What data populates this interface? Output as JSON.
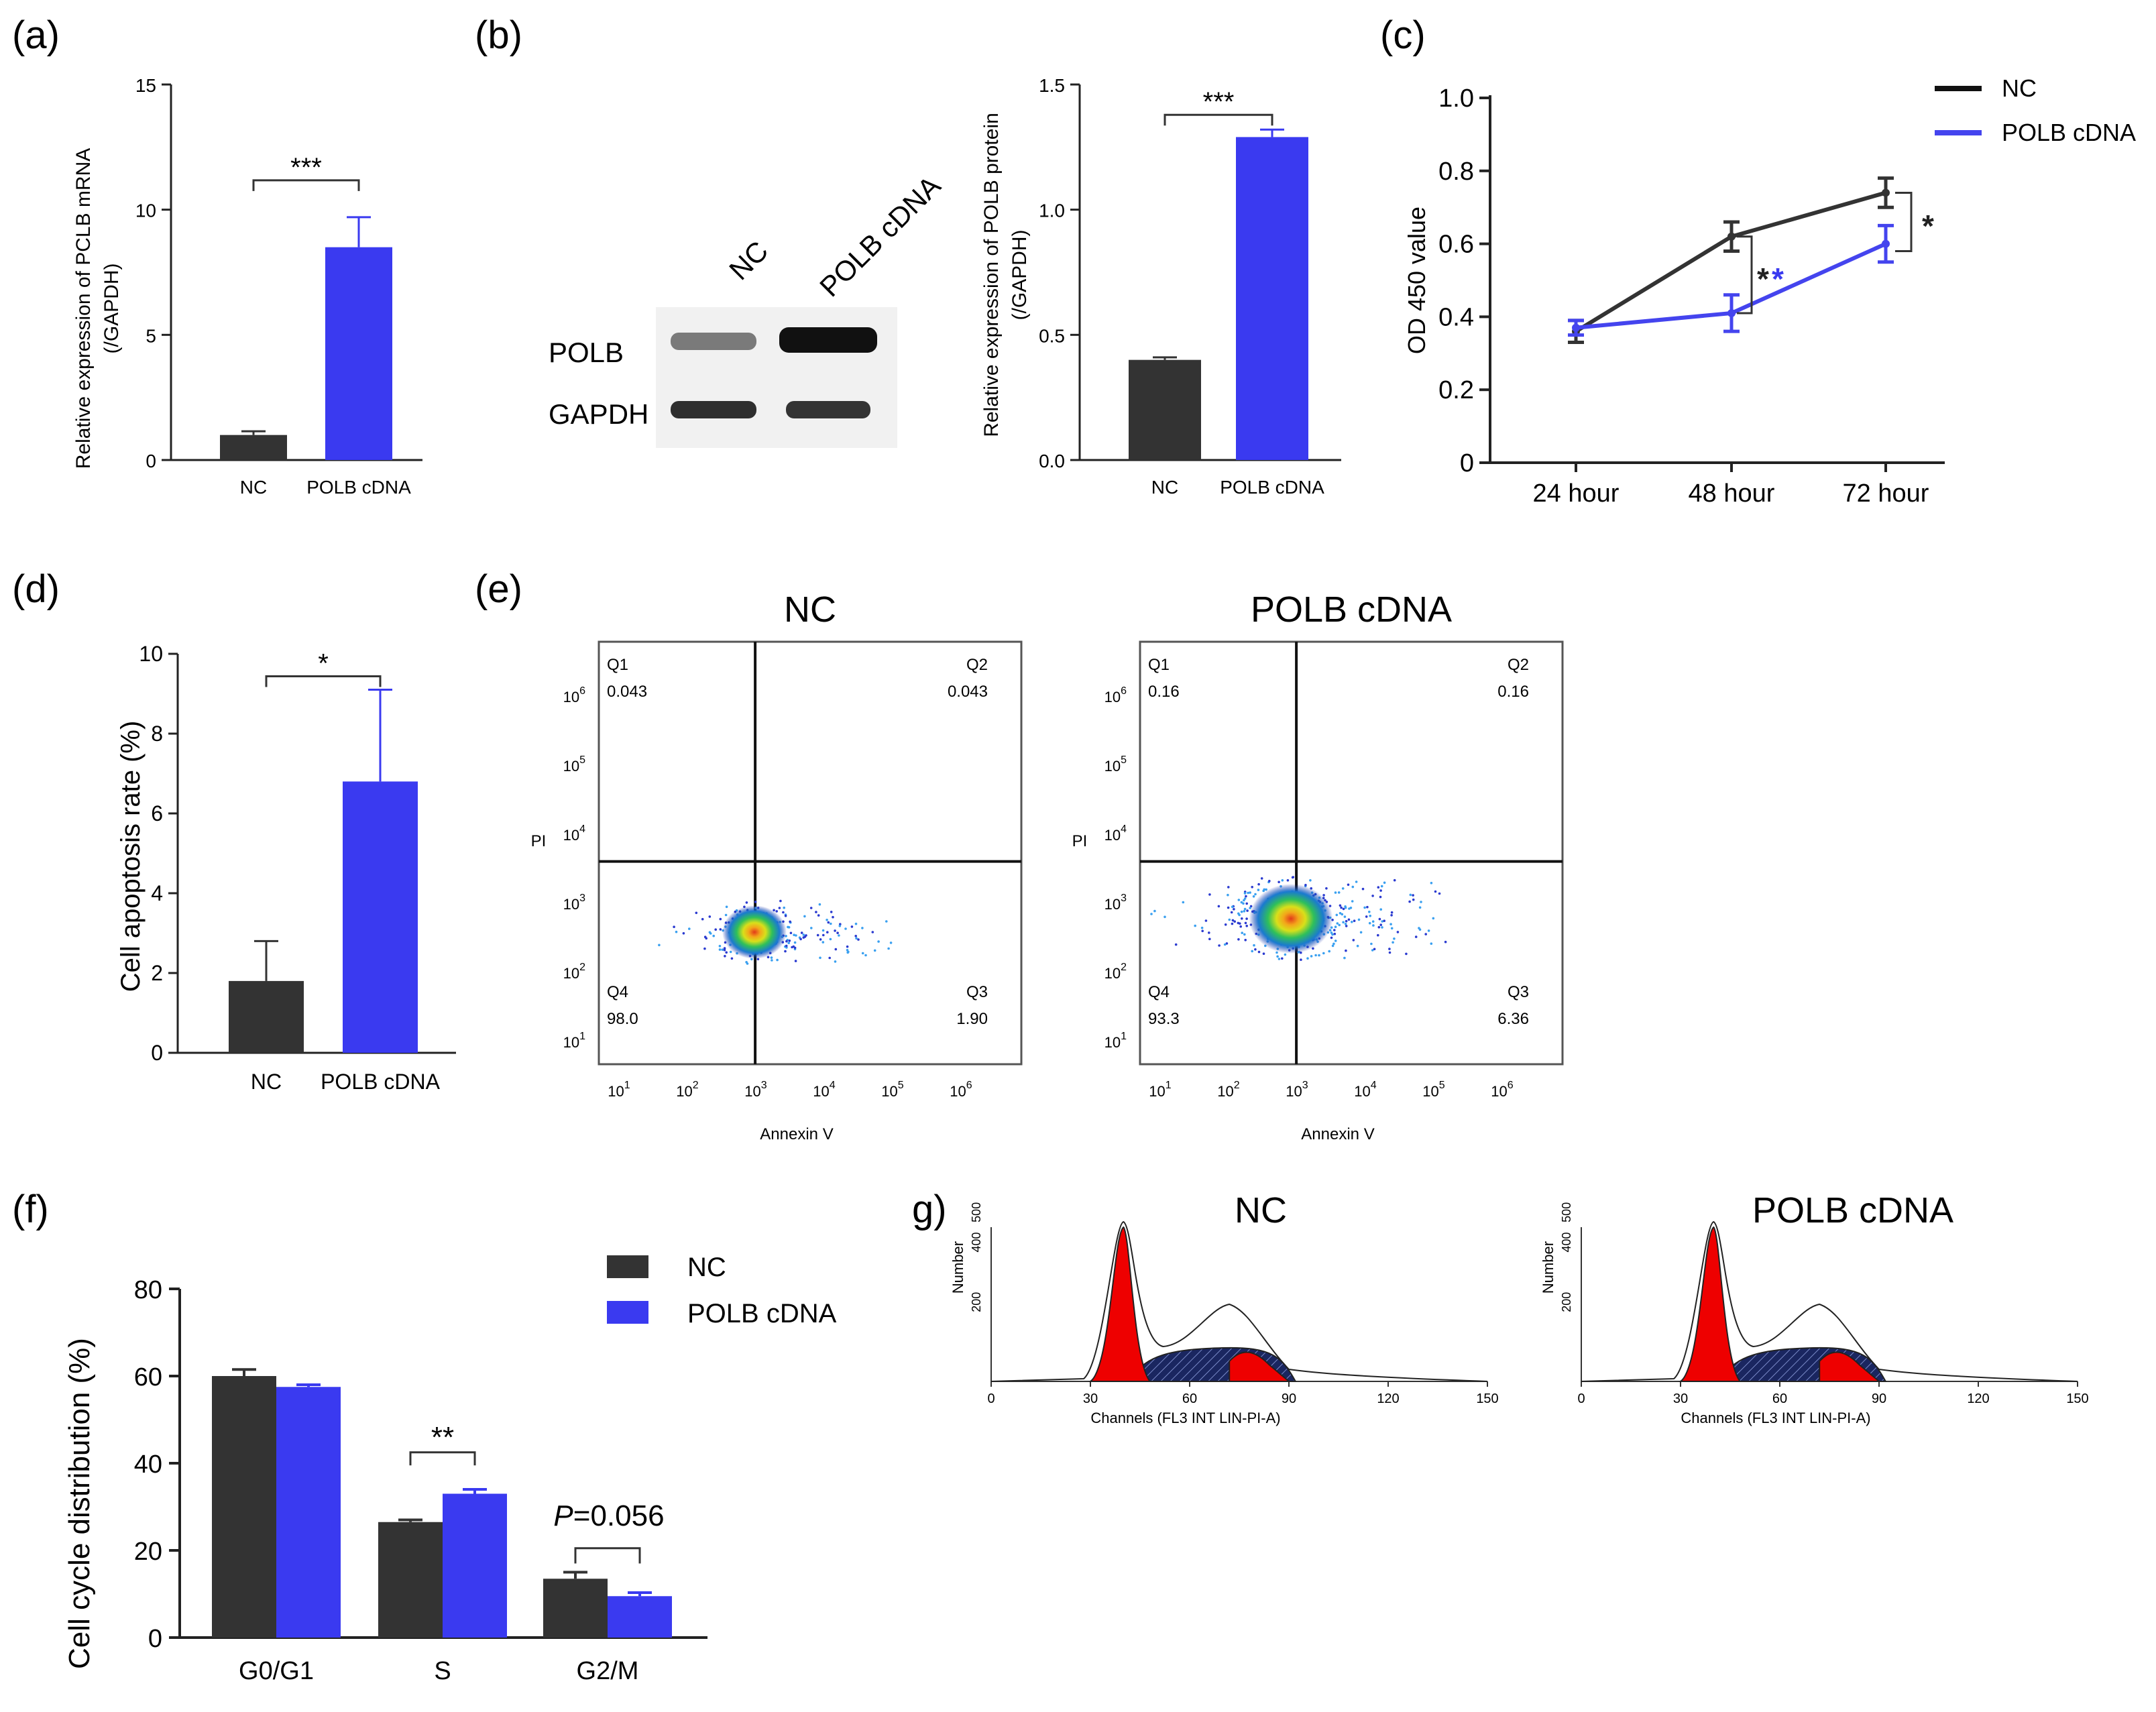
{
  "panel_labels": {
    "a": "(a)",
    "b": "(b)",
    "c": "(c)",
    "d": "(d)",
    "e": "(e)",
    "f": "(f)",
    "g": "g)"
  },
  "colors": {
    "nc": "#333333",
    "polb": "#3a3af0",
    "red": "#ee0000",
    "hatch": "#1a2660"
  },
  "chart_data": [
    {
      "id": "a",
      "type": "bar",
      "categories": [
        "NC",
        "POLB cDNA"
      ],
      "values": [
        1.0,
        8.5
      ],
      "errors": [
        0.15,
        1.2
      ],
      "ylabel": "Relative expression of PCLB mRNA",
      "ylabel2": "(/GAPDH)",
      "ylim": [
        0,
        15
      ],
      "yticks": [
        "0",
        "5",
        "10",
        "15"
      ],
      "sig": "***"
    },
    {
      "id": "b",
      "type": "bar",
      "categories": [
        "NC",
        "POLB cDNA"
      ],
      "values": [
        0.4,
        1.29
      ],
      "errors": [
        0.01,
        0.03
      ],
      "ylabel": "Relative expression of POLB protein",
      "ylabel2": "(/GAPDH)",
      "ylim": [
        0,
        1.5
      ],
      "yticks": [
        "0.0",
        "0.5",
        "1.0",
        "1.5"
      ],
      "sig": "***"
    },
    {
      "id": "c",
      "type": "line",
      "x": [
        "24 hour",
        "48 hour",
        "72 hour"
      ],
      "series": [
        {
          "name": "NC",
          "values": [
            0.36,
            0.62,
            0.74
          ],
          "errors": [
            0.03,
            0.04,
            0.04
          ]
        },
        {
          "name": "POLB cDNA",
          "values": [
            0.37,
            0.41,
            0.6
          ],
          "errors": [
            0.02,
            0.05,
            0.05
          ]
        }
      ],
      "ylabel": "OD 450 value",
      "ylim": [
        0,
        1.0
      ],
      "yticks": [
        "0",
        "0.2",
        "0.4",
        "0.6",
        "0.8",
        "1.0"
      ],
      "sig48": "*",
      "sig48b": "*",
      "sig72": "*"
    },
    {
      "id": "d",
      "type": "bar",
      "categories": [
        "NC",
        "POLB cDNA"
      ],
      "values": [
        1.8,
        6.8
      ],
      "errors": [
        1.0,
        2.3
      ],
      "ylabel": "Cell apoptosis rate (%)",
      "ylim": [
        0,
        10
      ],
      "yticks": [
        "0",
        "2",
        "4",
        "6",
        "8",
        "10"
      ],
      "sig": "*"
    },
    {
      "id": "f",
      "type": "bar",
      "categories": [
        "G0/G1",
        "S",
        "G2/M"
      ],
      "series": [
        {
          "name": "NC",
          "values": [
            60,
            26.5,
            13.5
          ],
          "errors": [
            1.5,
            0.5,
            1.5
          ]
        },
        {
          "name": "POLB cDNA",
          "values": [
            57.5,
            33,
            9.5
          ],
          "errors": [
            0.5,
            1.0,
            0.8
          ]
        }
      ],
      "ylabel": "Cell cycle distribution (%)",
      "ylim": [
        0,
        80
      ],
      "yticks": [
        "0",
        "20",
        "40",
        "60",
        "80"
      ],
      "sig_s": "**",
      "p_label": "P",
      "p_value": "=0.056"
    }
  ],
  "panel_b": {
    "lane_nc": "NC",
    "lane_polb": "POLB cDNA",
    "row_polb": "POLB",
    "row_gapdh": "GAPDH"
  },
  "panel_e": {
    "xlabel": "Annexin V",
    "ylabel": "PI",
    "log_ticks": [
      {
        "b": "10",
        "e": "1"
      },
      {
        "b": "10",
        "e": "2"
      },
      {
        "b": "10",
        "e": "3"
      },
      {
        "b": "10",
        "e": "4"
      },
      {
        "b": "10",
        "e": "5"
      },
      {
        "b": "10",
        "e": "6"
      }
    ],
    "plots": [
      {
        "title": "NC",
        "q1": "Q1",
        "q1v": "0.043",
        "q2": "Q2",
        "q2v": "0.043",
        "q3": "Q3",
        "q3v": "1.90",
        "q4": "Q4",
        "q4v": "98.0"
      },
      {
        "title": "POLB cDNA",
        "q1": "Q1",
        "q1v": "0.16",
        "q2": "Q2",
        "q2v": "0.16",
        "q3": "Q3",
        "q3v": "6.36",
        "q4": "Q4",
        "q4v": "93.3"
      }
    ]
  },
  "panel_g": {
    "xlabel": "Channels (FL3 INT LIN-PI-A)",
    "ylabel": "Number",
    "xticks": [
      "0",
      "30",
      "60",
      "90",
      "120",
      "150"
    ],
    "yticks": [
      "200",
      "400",
      "500"
    ],
    "plots": [
      {
        "title": "NC"
      },
      {
        "title": "POLB cDNA"
      }
    ]
  }
}
